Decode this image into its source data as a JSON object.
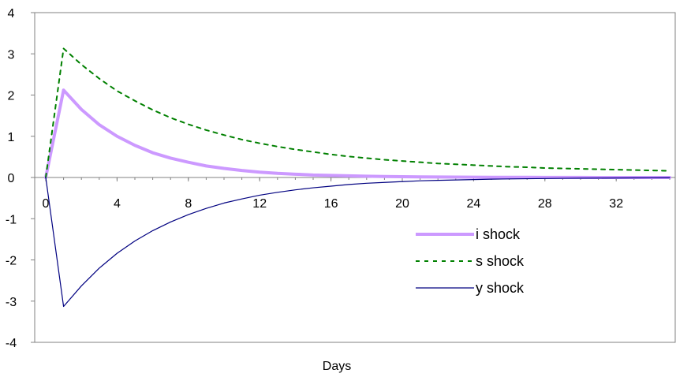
{
  "chart_data": {
    "type": "line",
    "title": "",
    "xlabel": "Days",
    "ylabel": "",
    "xlim": [
      0,
      35
    ],
    "ylim": [
      -4,
      4
    ],
    "x_ticks": [
      0,
      4,
      8,
      12,
      16,
      20,
      24,
      28,
      32
    ],
    "y_ticks": [
      -4,
      -3,
      -2,
      -1,
      0,
      1,
      2,
      3,
      4
    ],
    "grid": false,
    "legend_position": "right",
    "x": [
      0,
      1,
      2,
      3,
      4,
      5,
      6,
      7,
      8,
      9,
      10,
      11,
      12,
      13,
      14,
      15,
      16,
      17,
      18,
      19,
      20,
      21,
      22,
      23,
      24,
      25,
      26,
      27,
      28,
      29,
      30,
      31,
      32,
      33,
      34,
      35
    ],
    "series": [
      {
        "name": "i shock",
        "color": "#cc99ff",
        "style": "solid-thick",
        "values": [
          0,
          2.12,
          1.65,
          1.28,
          1.0,
          0.78,
          0.6,
          0.47,
          0.37,
          0.28,
          0.22,
          0.17,
          0.13,
          0.1,
          0.08,
          0.06,
          0.05,
          0.04,
          0.03,
          0.025,
          0.02,
          0.015,
          0.012,
          0.01,
          0.008,
          0.006,
          0.005,
          0.004,
          0.003,
          0.002,
          0.002,
          0.001,
          0.001,
          0.001,
          0.001,
          0
        ]
      },
      {
        "name": "s shock",
        "color": "#008000",
        "style": "dashed",
        "values": [
          0,
          3.13,
          2.74,
          2.4,
          2.1,
          1.86,
          1.64,
          1.45,
          1.29,
          1.15,
          1.03,
          0.92,
          0.83,
          0.75,
          0.68,
          0.62,
          0.56,
          0.51,
          0.47,
          0.43,
          0.4,
          0.37,
          0.34,
          0.32,
          0.3,
          0.28,
          0.26,
          0.25,
          0.23,
          0.22,
          0.21,
          0.2,
          0.19,
          0.18,
          0.17,
          0.16
        ]
      },
      {
        "name": "y shock",
        "color": "#000080",
        "style": "solid-thin",
        "values": [
          0,
          -3.13,
          -2.63,
          -2.2,
          -1.84,
          -1.54,
          -1.29,
          -1.08,
          -0.9,
          -0.75,
          -0.62,
          -0.52,
          -0.43,
          -0.36,
          -0.3,
          -0.25,
          -0.21,
          -0.17,
          -0.14,
          -0.12,
          -0.1,
          -0.08,
          -0.07,
          -0.06,
          -0.05,
          -0.04,
          -0.035,
          -0.03,
          -0.025,
          -0.02,
          -0.017,
          -0.014,
          -0.012,
          -0.01,
          -0.008,
          -0.007
        ]
      }
    ]
  }
}
